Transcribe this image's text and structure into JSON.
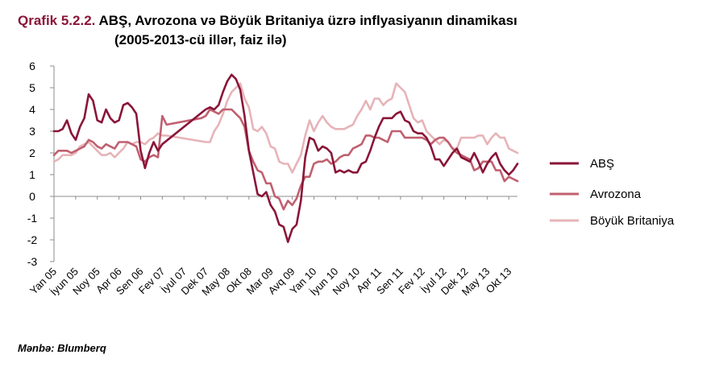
{
  "title": {
    "prefix": "Qrafik 5.2.2.",
    "line1": " ABŞ, Avrozona və Böyük Britaniya üzrə inflyasiyanın dinamikası",
    "line2": "(2005-2013-cü illər, faiz ilə)"
  },
  "source": "Mənbə: Blumberq",
  "chart_data": {
    "type": "line",
    "title": "ABŞ, Avrozona və Böyük Britaniya üzrə inflyasiyanın dinamikası (2005-2013-cü illər, faiz ilə)",
    "xlabel": "",
    "ylabel": "",
    "ylim": [
      -3,
      6
    ],
    "yticks": [
      6,
      5,
      4,
      3,
      2,
      1,
      0,
      -1,
      -2,
      -3
    ],
    "grid": false,
    "legend_position": "right",
    "x_tick_labels": [
      "Yan 05",
      "İyun 05",
      "Noy 05",
      "Apr 06",
      "Sen 06",
      "Fev 07",
      "İyul 07",
      "Dek 07",
      "May 08",
      "Okt 08",
      "Mar 09",
      "Avq 09",
      "Yan 10",
      "İyun 10",
      "Noy 10",
      "Apr 11",
      "Sen 11",
      "Fev 12",
      "İyul 12",
      "Dek 12",
      "May 13",
      "Okt 13"
    ],
    "x_tick_months": [
      0,
      5,
      10,
      15,
      20,
      25,
      30,
      35,
      40,
      45,
      50,
      55,
      60,
      65,
      70,
      75,
      80,
      85,
      90,
      95,
      100,
      105
    ],
    "x_range_months": [
      0,
      107
    ],
    "series": [
      {
        "name": "ABŞ",
        "color": "#8a1538",
        "points": [
          [
            0,
            3.0
          ],
          [
            1,
            3.0
          ],
          [
            2,
            3.1
          ],
          [
            3,
            3.5
          ],
          [
            4,
            2.9
          ],
          [
            5,
            2.6
          ],
          [
            6,
            3.2
          ],
          [
            7,
            3.6
          ],
          [
            8,
            4.7
          ],
          [
            9,
            4.4
          ],
          [
            10,
            3.5
          ],
          [
            11,
            3.4
          ],
          [
            12,
            4.0
          ],
          [
            13,
            3.6
          ],
          [
            14,
            3.4
          ],
          [
            15,
            3.5
          ],
          [
            16,
            4.2
          ],
          [
            17,
            4.3
          ],
          [
            18,
            4.1
          ],
          [
            19,
            3.8
          ],
          [
            20,
            2.1
          ],
          [
            21,
            1.3
          ],
          [
            22,
            2.0
          ],
          [
            23,
            2.5
          ],
          [
            24,
            2.1
          ],
          [
            25,
            2.4
          ],
          [
            35,
            4.0
          ],
          [
            36,
            4.1
          ],
          [
            37,
            4.0
          ],
          [
            38,
            4.2
          ],
          [
            39,
            4.8
          ],
          [
            40,
            5.3
          ],
          [
            41,
            5.6
          ],
          [
            42,
            5.4
          ],
          [
            43,
            4.9
          ],
          [
            44,
            3.7
          ],
          [
            45,
            2.1
          ],
          [
            46,
            1.1
          ],
          [
            47,
            0.1
          ],
          [
            48,
            0.0
          ],
          [
            49,
            0.2
          ],
          [
            50,
            -0.4
          ],
          [
            51,
            -0.7
          ],
          [
            52,
            -1.3
          ],
          [
            53,
            -1.4
          ],
          [
            54,
            -2.1
          ],
          [
            55,
            -1.5
          ],
          [
            56,
            -1.3
          ],
          [
            57,
            -0.2
          ],
          [
            58,
            1.8
          ],
          [
            59,
            2.7
          ],
          [
            60,
            2.6
          ],
          [
            61,
            2.1
          ],
          [
            62,
            2.3
          ],
          [
            63,
            2.2
          ],
          [
            64,
            2.0
          ],
          [
            65,
            1.1
          ],
          [
            66,
            1.2
          ],
          [
            67,
            1.1
          ],
          [
            68,
            1.2
          ],
          [
            69,
            1.1
          ],
          [
            70,
            1.1
          ],
          [
            71,
            1.5
          ],
          [
            72,
            1.6
          ],
          [
            73,
            2.1
          ],
          [
            74,
            2.7
          ],
          [
            75,
            3.2
          ],
          [
            76,
            3.6
          ],
          [
            77,
            3.6
          ],
          [
            78,
            3.6
          ],
          [
            79,
            3.8
          ],
          [
            80,
            3.9
          ],
          [
            81,
            3.5
          ],
          [
            82,
            3.4
          ],
          [
            83,
            3.0
          ],
          [
            84,
            2.9
          ],
          [
            85,
            2.9
          ],
          [
            86,
            2.7
          ],
          [
            87,
            2.3
          ],
          [
            88,
            1.7
          ],
          [
            89,
            1.7
          ],
          [
            90,
            1.4
          ],
          [
            91,
            1.7
          ],
          [
            92,
            2.0
          ],
          [
            93,
            2.2
          ],
          [
            94,
            1.8
          ],
          [
            95,
            1.7
          ],
          [
            96,
            1.6
          ],
          [
            97,
            2.0
          ],
          [
            98,
            1.6
          ],
          [
            99,
            1.1
          ],
          [
            100,
            1.5
          ],
          [
            101,
            1.8
          ],
          [
            102,
            2.0
          ],
          [
            103,
            1.5
          ],
          [
            104,
            1.2
          ],
          [
            105,
            1.0
          ],
          [
            106,
            1.2
          ],
          [
            107,
            1.5
          ]
        ]
      },
      {
        "name": "Avrozona",
        "color": "#c0606f",
        "points": [
          [
            0,
            1.9
          ],
          [
            1,
            2.1
          ],
          [
            2,
            2.1
          ],
          [
            3,
            2.1
          ],
          [
            4,
            2.0
          ],
          [
            5,
            2.1
          ],
          [
            6,
            2.2
          ],
          [
            7,
            2.3
          ],
          [
            8,
            2.6
          ],
          [
            9,
            2.5
          ],
          [
            10,
            2.3
          ],
          [
            11,
            2.2
          ],
          [
            12,
            2.4
          ],
          [
            13,
            2.3
          ],
          [
            14,
            2.2
          ],
          [
            15,
            2.5
          ],
          [
            16,
            2.5
          ],
          [
            17,
            2.5
          ],
          [
            18,
            2.4
          ],
          [
            19,
            2.3
          ],
          [
            20,
            1.7
          ],
          [
            21,
            1.6
          ],
          [
            22,
            1.8
          ],
          [
            23,
            1.9
          ],
          [
            24,
            1.8
          ],
          [
            25,
            3.7
          ],
          [
            26,
            3.3
          ],
          [
            34,
            3.6
          ],
          [
            35,
            3.7
          ],
          [
            36,
            4.0
          ],
          [
            37,
            3.9
          ],
          [
            38,
            3.8
          ],
          [
            39,
            4.0
          ],
          [
            40,
            4.0
          ],
          [
            41,
            4.0
          ],
          [
            42,
            3.8
          ],
          [
            43,
            3.6
          ],
          [
            44,
            3.2
          ],
          [
            45,
            2.1
          ],
          [
            46,
            1.6
          ],
          [
            47,
            1.2
          ],
          [
            48,
            1.1
          ],
          [
            49,
            0.6
          ],
          [
            50,
            0.6
          ],
          [
            51,
            0.0
          ],
          [
            52,
            -0.1
          ],
          [
            53,
            -0.6
          ],
          [
            54,
            -0.2
          ],
          [
            55,
            -0.4
          ],
          [
            56,
            -0.1
          ],
          [
            57,
            0.5
          ],
          [
            58,
            0.9
          ],
          [
            59,
            0.9
          ],
          [
            60,
            1.5
          ],
          [
            61,
            1.6
          ],
          [
            62,
            1.6
          ],
          [
            63,
            1.7
          ],
          [
            64,
            1.5
          ],
          [
            65,
            1.6
          ],
          [
            66,
            1.8
          ],
          [
            67,
            1.9
          ],
          [
            68,
            1.9
          ],
          [
            69,
            2.2
          ],
          [
            70,
            2.3
          ],
          [
            71,
            2.4
          ],
          [
            72,
            2.8
          ],
          [
            73,
            2.8
          ],
          [
            74,
            2.7
          ],
          [
            75,
            2.7
          ],
          [
            76,
            2.6
          ],
          [
            77,
            2.5
          ],
          [
            78,
            3.0
          ],
          [
            79,
            3.0
          ],
          [
            80,
            3.0
          ],
          [
            81,
            2.7
          ],
          [
            82,
            2.7
          ],
          [
            83,
            2.7
          ],
          [
            84,
            2.7
          ],
          [
            85,
            2.7
          ],
          [
            86,
            2.6
          ],
          [
            87,
            2.4
          ],
          [
            88,
            2.6
          ],
          [
            89,
            2.7
          ],
          [
            90,
            2.7
          ],
          [
            91,
            2.5
          ],
          [
            92,
            2.2
          ],
          [
            93,
            2.0
          ],
          [
            94,
            1.9
          ],
          [
            95,
            1.8
          ],
          [
            96,
            1.7
          ],
          [
            97,
            1.2
          ],
          [
            98,
            1.3
          ],
          [
            99,
            1.6
          ],
          [
            100,
            1.6
          ],
          [
            101,
            1.6
          ],
          [
            102,
            1.2
          ],
          [
            103,
            1.2
          ],
          [
            104,
            0.7
          ],
          [
            105,
            0.9
          ],
          [
            106,
            0.8
          ],
          [
            107,
            0.7
          ]
        ]
      },
      {
        "name": "Böyük Britaniya",
        "color": "#e6b4b8",
        "points": [
          [
            0,
            1.6
          ],
          [
            1,
            1.7
          ],
          [
            2,
            1.9
          ],
          [
            3,
            1.9
          ],
          [
            4,
            1.9
          ],
          [
            5,
            2.0
          ],
          [
            6,
            2.3
          ],
          [
            7,
            2.4
          ],
          [
            8,
            2.5
          ],
          [
            9,
            2.3
          ],
          [
            10,
            2.1
          ],
          [
            11,
            1.9
          ],
          [
            12,
            1.9
          ],
          [
            13,
            2.0
          ],
          [
            14,
            1.8
          ],
          [
            15,
            2.0
          ],
          [
            16,
            2.2
          ],
          [
            17,
            2.5
          ],
          [
            18,
            2.4
          ],
          [
            19,
            2.5
          ],
          [
            20,
            2.5
          ],
          [
            21,
            2.4
          ],
          [
            22,
            2.6
          ],
          [
            23,
            2.7
          ],
          [
            24,
            2.9
          ],
          [
            25,
            2.8
          ],
          [
            26,
            2.8
          ],
          [
            35,
            2.5
          ],
          [
            36,
            2.5
          ],
          [
            37,
            3.0
          ],
          [
            38,
            3.3
          ],
          [
            39,
            3.8
          ],
          [
            40,
            4.4
          ],
          [
            41,
            4.8
          ],
          [
            42,
            5.0
          ],
          [
            43,
            5.2
          ],
          [
            44,
            4.5
          ],
          [
            45,
            4.1
          ],
          [
            46,
            3.1
          ],
          [
            47,
            3.0
          ],
          [
            48,
            3.2
          ],
          [
            49,
            2.9
          ],
          [
            50,
            2.3
          ],
          [
            51,
            2.2
          ],
          [
            52,
            1.6
          ],
          [
            53,
            1.5
          ],
          [
            54,
            1.5
          ],
          [
            55,
            1.1
          ],
          [
            56,
            1.5
          ],
          [
            57,
            1.9
          ],
          [
            58,
            2.8
          ],
          [
            59,
            3.5
          ],
          [
            60,
            3.0
          ],
          [
            61,
            3.4
          ],
          [
            62,
            3.7
          ],
          [
            63,
            3.4
          ],
          [
            64,
            3.2
          ],
          [
            65,
            3.1
          ],
          [
            66,
            3.1
          ],
          [
            67,
            3.1
          ],
          [
            68,
            3.2
          ],
          [
            69,
            3.3
          ],
          [
            70,
            3.7
          ],
          [
            71,
            4.0
          ],
          [
            72,
            4.4
          ],
          [
            73,
            4.0
          ],
          [
            74,
            4.5
          ],
          [
            75,
            4.5
          ],
          [
            76,
            4.2
          ],
          [
            77,
            4.4
          ],
          [
            78,
            4.5
          ],
          [
            79,
            5.2
          ],
          [
            80,
            5.0
          ],
          [
            81,
            4.8
          ],
          [
            82,
            4.2
          ],
          [
            83,
            3.6
          ],
          [
            84,
            3.4
          ],
          [
            85,
            3.5
          ],
          [
            86,
            3.0
          ],
          [
            87,
            2.8
          ],
          [
            88,
            2.6
          ],
          [
            89,
            2.4
          ],
          [
            90,
            2.6
          ],
          [
            91,
            2.5
          ],
          [
            92,
            2.2
          ],
          [
            93,
            2.2
          ],
          [
            94,
            2.7
          ],
          [
            95,
            2.7
          ],
          [
            96,
            2.7
          ],
          [
            97,
            2.7
          ],
          [
            98,
            2.8
          ],
          [
            99,
            2.8
          ],
          [
            100,
            2.4
          ],
          [
            101,
            2.7
          ],
          [
            102,
            2.9
          ],
          [
            103,
            2.7
          ],
          [
            104,
            2.7
          ],
          [
            105,
            2.2
          ],
          [
            106,
            2.1
          ],
          [
            107,
            2.0
          ]
        ]
      }
    ]
  }
}
